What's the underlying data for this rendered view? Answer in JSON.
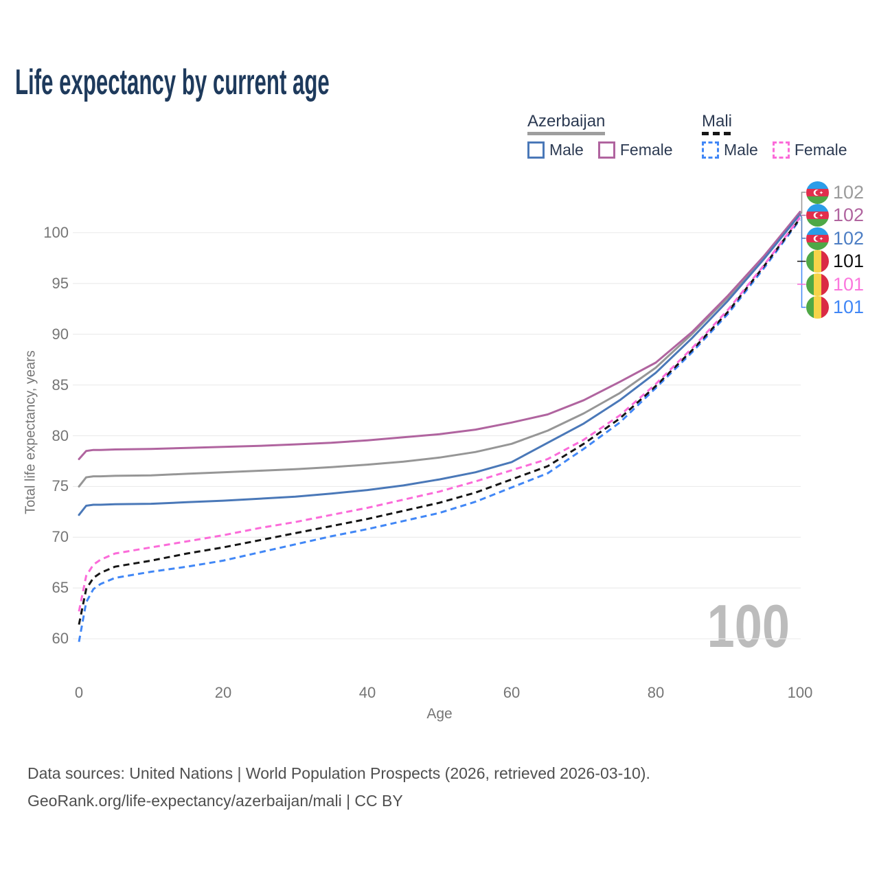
{
  "title": "Life expectancy by current age",
  "legend": {
    "groups": [
      {
        "country": "Azerbaijan",
        "line_style": "solid",
        "line_color": "#9e9e9e",
        "items": [
          {
            "label": "Male",
            "color": "#4a78b8",
            "dashed": false
          },
          {
            "label": "Female",
            "color": "#b0649f",
            "dashed": false
          }
        ]
      },
      {
        "country": "Mali",
        "line_style": "dashed",
        "line_color": "#161616",
        "items": [
          {
            "label": "Male",
            "color": "#4187f6",
            "dashed": true
          },
          {
            "label": "Female",
            "color": "#fb6bd9",
            "dashed": true
          }
        ]
      }
    ]
  },
  "chart_data": {
    "type": "line",
    "title": "Life expectancy by current age",
    "xlabel": "Age",
    "ylabel": "Total life expectancy, years",
    "xticks": [
      0,
      20,
      40,
      60,
      80,
      100
    ],
    "yticks": [
      60,
      65,
      70,
      75,
      80,
      85,
      90,
      95,
      100
    ],
    "xlim": [
      0,
      100
    ],
    "ylim": [
      58.5,
      103.5
    ],
    "grid": "horizontal",
    "watermark": "100",
    "x": [
      0,
      1,
      2,
      3,
      5,
      10,
      15,
      20,
      25,
      30,
      35,
      40,
      45,
      50,
      55,
      60,
      65,
      70,
      75,
      80,
      85,
      90,
      95,
      100
    ],
    "series": [
      {
        "name": "Azerbaijan",
        "sex": "Both",
        "color": "#969696",
        "dashed": false,
        "end_value": "102",
        "end_value_color": "#9b9b9b",
        "flag": "azerbaijan",
        "values": [
          75.0,
          75.9,
          76.0,
          76.0,
          76.05,
          76.1,
          76.25,
          76.4,
          76.55,
          76.7,
          76.9,
          77.15,
          77.45,
          77.85,
          78.4,
          79.2,
          80.5,
          82.2,
          84.2,
          86.7,
          90.0,
          93.6,
          97.6,
          101.95
        ]
      },
      {
        "name": "Azerbaijan Female",
        "sex": "Female",
        "color": "#b0649f",
        "dashed": false,
        "end_value": "102",
        "end_value_color": "#b0649f",
        "flag": "azerbaijan",
        "values": [
          77.7,
          78.5,
          78.6,
          78.6,
          78.65,
          78.7,
          78.8,
          78.9,
          79.0,
          79.15,
          79.3,
          79.55,
          79.85,
          80.15,
          80.6,
          81.3,
          82.1,
          83.5,
          85.3,
          87.2,
          90.2,
          93.8,
          97.7,
          102.05
        ]
      },
      {
        "name": "Azerbaijan Male",
        "sex": "Male",
        "color": "#4a78b8",
        "dashed": false,
        "end_value": "102",
        "end_value_color": "#4d7ec4",
        "flag": "azerbaijan",
        "values": [
          72.2,
          73.1,
          73.2,
          73.2,
          73.25,
          73.3,
          73.45,
          73.6,
          73.8,
          74.0,
          74.3,
          74.65,
          75.1,
          75.7,
          76.4,
          77.4,
          79.3,
          81.2,
          83.5,
          86.2,
          89.6,
          93.3,
          97.4,
          101.8
        ]
      },
      {
        "name": "Mali",
        "sex": "Both",
        "color": "#161616",
        "dashed": true,
        "end_value": "101",
        "end_value_color": "#111111",
        "flag": "mali",
        "values": [
          61.4,
          64.9,
          66.0,
          66.5,
          67.1,
          67.7,
          68.4,
          69.0,
          69.7,
          70.4,
          71.1,
          71.8,
          72.6,
          73.4,
          74.4,
          75.7,
          77.0,
          79.2,
          81.7,
          84.9,
          88.4,
          92.2,
          96.7,
          101.4
        ]
      },
      {
        "name": "Mali Female",
        "sex": "Female",
        "color": "#fb6bd9",
        "dashed": true,
        "end_value": "101",
        "end_value_color": "#fb77dd",
        "flag": "mali",
        "values": [
          62.7,
          66.2,
          67.3,
          67.8,
          68.4,
          69.0,
          69.6,
          70.2,
          70.9,
          71.5,
          72.2,
          72.9,
          73.7,
          74.5,
          75.5,
          76.6,
          77.7,
          79.6,
          82.0,
          85.1,
          88.6,
          92.4,
          96.8,
          101.5
        ]
      },
      {
        "name": "Mali Male",
        "sex": "Male",
        "color": "#4187f6",
        "dashed": true,
        "end_value": "101",
        "end_value_color": "#4187f6",
        "flag": "mali",
        "values": [
          59.7,
          63.6,
          64.9,
          65.4,
          66.0,
          66.6,
          67.1,
          67.7,
          68.5,
          69.3,
          70.1,
          70.8,
          71.6,
          72.4,
          73.5,
          74.9,
          76.3,
          78.7,
          81.3,
          84.7,
          88.2,
          92.0,
          96.5,
          101.3
        ]
      }
    ]
  },
  "footer": {
    "line1": "Data sources: United Nations | World Population Prospects (2026, retrieved 2026-03-10).",
    "line2": "GeoRank.org/life-expectancy/azerbaijan/mali | CC BY"
  }
}
